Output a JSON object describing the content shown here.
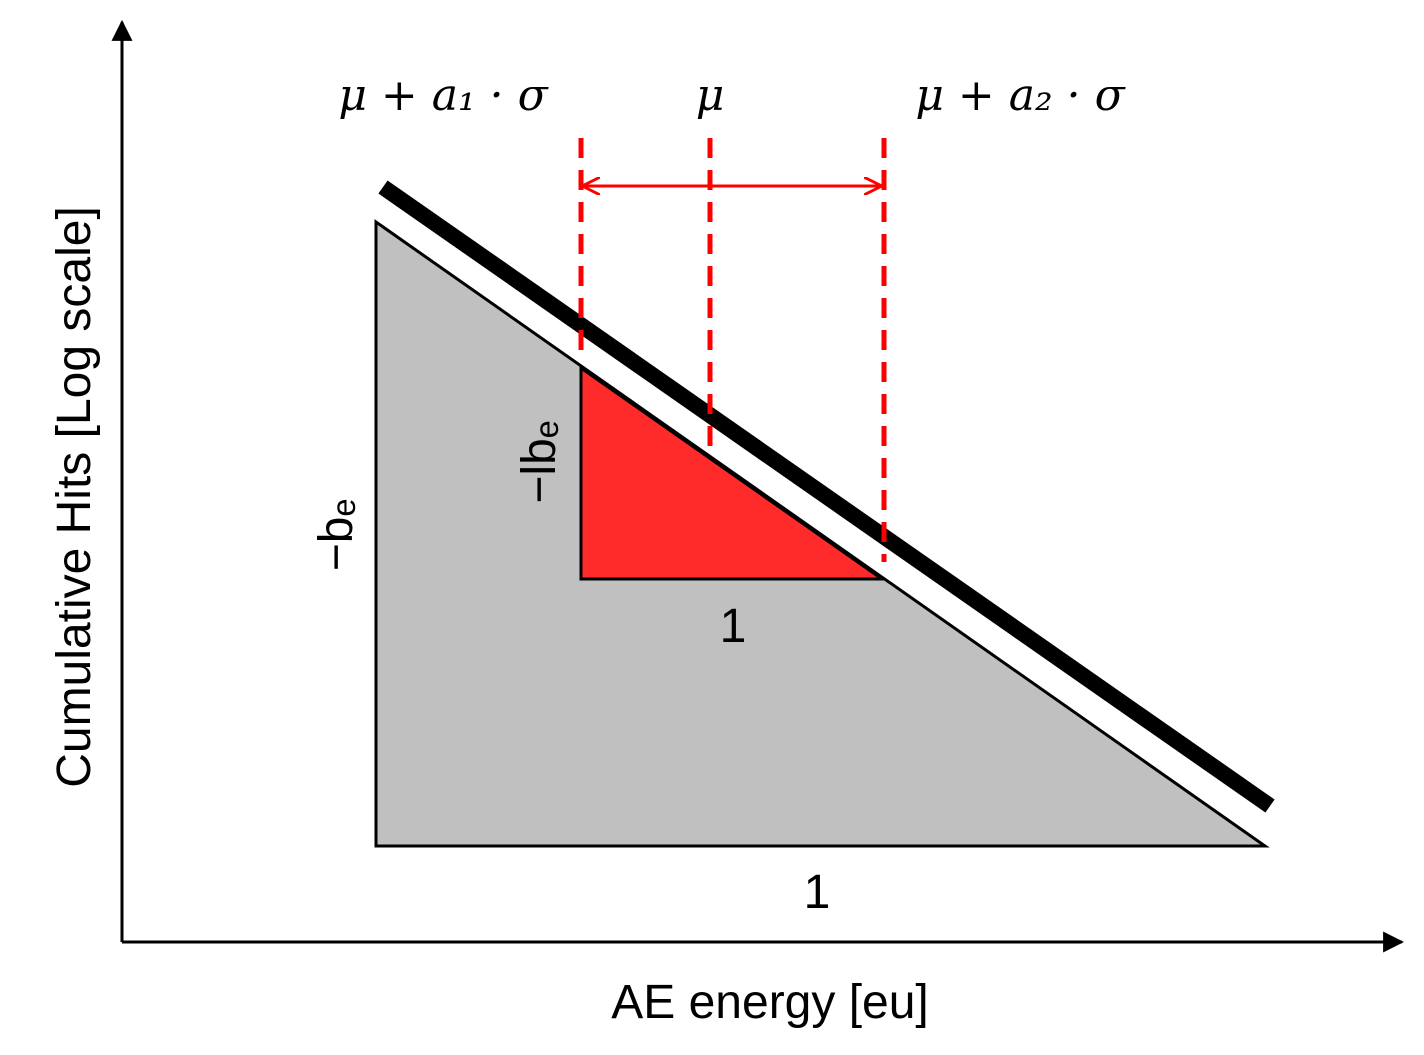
{
  "axes": {
    "y_label": "Cumulative Hits [Log scale]",
    "x_label": "AE energy [eu]"
  },
  "annotations": {
    "lower_bound": "μ + a₁ · σ",
    "mean": "μ",
    "upper_bound": "μ + a₂ · σ"
  },
  "big_triangle": {
    "rise": "−bₑ",
    "run": "1"
  },
  "small_triangle": {
    "rise": "−lbₑ",
    "run": "1"
  }
}
